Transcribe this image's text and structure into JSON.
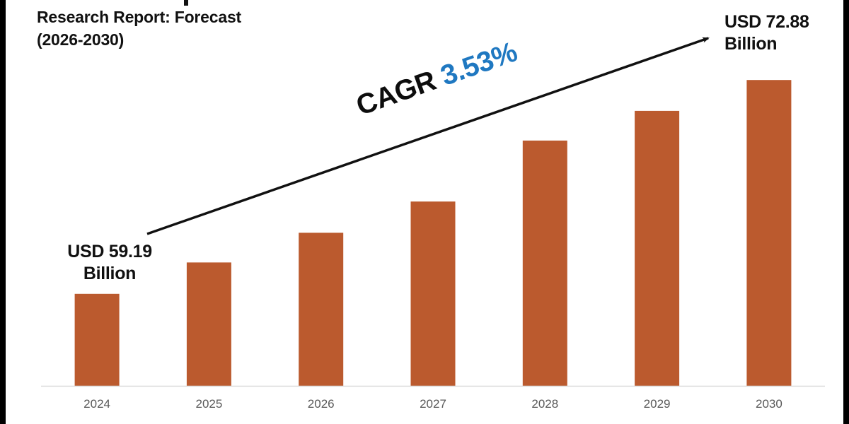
{
  "chart_data": {
    "type": "bar",
    "title_lines": [
      "Research Report: Forecast",
      "(2026-2030)"
    ],
    "title_note": "first title line clipped at top edge",
    "categories": [
      "2024",
      "2025",
      "2026",
      "2027",
      "2028",
      "2029",
      "2030"
    ],
    "values": [
      59.19,
      61.2,
      63.1,
      65.1,
      69.0,
      70.9,
      72.88
    ],
    "units": "USD Billion",
    "ylim": [
      53.3,
      78.0
    ],
    "xlabel": "",
    "ylabel": "",
    "grid": false,
    "legend": "none",
    "bar_color": "#bb5a2e",
    "annotations": {
      "start_label": [
        "USD 59.19",
        "Billion"
      ],
      "end_label": [
        "USD 72.88",
        "Billion"
      ],
      "cagr_label": "CAGR",
      "cagr_value": "3.53%",
      "cagr_value_color": "#1f78c1",
      "trend_arrow": "from 2024 to 2030, upward"
    }
  },
  "colors": {
    "frame": "#000000",
    "background": "#ffffff",
    "axis": "#d9d9d9",
    "tick_text": "#595959"
  }
}
